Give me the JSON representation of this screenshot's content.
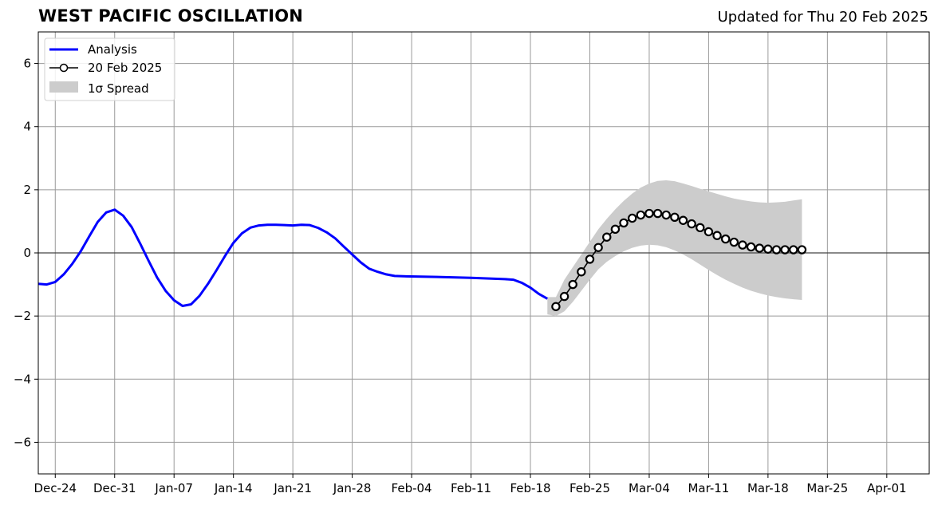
{
  "chart_data": {
    "type": "line",
    "title": "WEST PACIFIC OSCILLATION",
    "subtitle": "Updated for Thu 20 Feb 2025",
    "x_type": "date",
    "xlim": [
      "2024-12-22",
      "2025-04-06"
    ],
    "ylim": [
      -7,
      7
    ],
    "yticks": [
      -6,
      -4,
      -2,
      0,
      2,
      4,
      6
    ],
    "ytick_labels": [
      "−6",
      "−4",
      "−2",
      "0",
      "2",
      "4",
      "6"
    ],
    "xticks": [
      "2024-12-24",
      "2024-12-31",
      "2025-01-07",
      "2025-01-14",
      "2025-01-21",
      "2025-01-28",
      "2025-02-04",
      "2025-02-11",
      "2025-02-18",
      "2025-02-25",
      "2025-03-04",
      "2025-03-11",
      "2025-03-18",
      "2025-03-25",
      "2025-04-01"
    ],
    "xtick_labels": [
      "Dec-24",
      "Dec-31",
      "Jan-07",
      "Jan-14",
      "Jan-21",
      "Jan-28",
      "Feb-04",
      "Feb-11",
      "Feb-18",
      "Feb-25",
      "Mar-04",
      "Mar-11",
      "Mar-18",
      "Mar-25",
      "Apr-01"
    ],
    "grid": true,
    "legend": {
      "position": "top-left",
      "entries": [
        "Analysis",
        "20 Feb 2025",
        "1σ Spread"
      ]
    },
    "colors": {
      "analysis": "#0000ff",
      "forecast": "#000000",
      "spread": "#cccccc"
    },
    "series": [
      {
        "name": "Analysis",
        "style": "line",
        "points": [
          [
            "2024-12-22",
            -0.98
          ],
          [
            "2024-12-23",
            -1.0
          ],
          [
            "2024-12-24",
            -0.92
          ],
          [
            "2024-12-25",
            -0.68
          ],
          [
            "2024-12-26",
            -0.35
          ],
          [
            "2024-12-27",
            0.05
          ],
          [
            "2024-12-28",
            0.52
          ],
          [
            "2024-12-29",
            0.98
          ],
          [
            "2024-12-30",
            1.28
          ],
          [
            "2024-12-31",
            1.37
          ],
          [
            "2025-01-01",
            1.18
          ],
          [
            "2025-01-02",
            0.82
          ],
          [
            "2025-01-03",
            0.3
          ],
          [
            "2025-01-04",
            -0.25
          ],
          [
            "2025-01-05",
            -0.78
          ],
          [
            "2025-01-06",
            -1.2
          ],
          [
            "2025-01-07",
            -1.5
          ],
          [
            "2025-01-08",
            -1.68
          ],
          [
            "2025-01-09",
            -1.63
          ],
          [
            "2025-01-10",
            -1.36
          ],
          [
            "2025-01-11",
            -0.98
          ],
          [
            "2025-01-12",
            -0.55
          ],
          [
            "2025-01-13",
            -0.1
          ],
          [
            "2025-01-14",
            0.32
          ],
          [
            "2025-01-15",
            0.62
          ],
          [
            "2025-01-16",
            0.8
          ],
          [
            "2025-01-17",
            0.87
          ],
          [
            "2025-01-18",
            0.89
          ],
          [
            "2025-01-19",
            0.89
          ],
          [
            "2025-01-20",
            0.88
          ],
          [
            "2025-01-21",
            0.87
          ],
          [
            "2025-01-22",
            0.89
          ],
          [
            "2025-01-23",
            0.88
          ],
          [
            "2025-01-24",
            0.79
          ],
          [
            "2025-01-25",
            0.65
          ],
          [
            "2025-01-26",
            0.46
          ],
          [
            "2025-01-27",
            0.2
          ],
          [
            "2025-01-28",
            -0.05
          ],
          [
            "2025-01-29",
            -0.3
          ],
          [
            "2025-01-30",
            -0.5
          ],
          [
            "2025-01-31",
            -0.6
          ],
          [
            "2025-02-01",
            -0.68
          ],
          [
            "2025-02-02",
            -0.73
          ],
          [
            "2025-02-03",
            -0.74
          ],
          [
            "2025-02-07",
            -0.76
          ],
          [
            "2025-02-11",
            -0.79
          ],
          [
            "2025-02-15",
            -0.83
          ],
          [
            "2025-02-16",
            -0.85
          ],
          [
            "2025-02-17",
            -0.95
          ],
          [
            "2025-02-18",
            -1.1
          ],
          [
            "2025-02-19",
            -1.3
          ],
          [
            "2025-02-20",
            -1.45
          ]
        ]
      },
      {
        "name": "20 Feb 2025",
        "style": "line-circle",
        "points": [
          [
            "2025-02-21",
            -1.7
          ],
          [
            "2025-02-22",
            -1.38
          ],
          [
            "2025-02-23",
            -1.0
          ],
          [
            "2025-02-24",
            -0.6
          ],
          [
            "2025-02-25",
            -0.2
          ],
          [
            "2025-02-26",
            0.17
          ],
          [
            "2025-02-27",
            0.5
          ],
          [
            "2025-02-28",
            0.75
          ],
          [
            "2025-03-01",
            0.95
          ],
          [
            "2025-03-02",
            1.1
          ],
          [
            "2025-03-03",
            1.2
          ],
          [
            "2025-03-04",
            1.25
          ],
          [
            "2025-03-05",
            1.25
          ],
          [
            "2025-03-06",
            1.2
          ],
          [
            "2025-03-07",
            1.13
          ],
          [
            "2025-03-08",
            1.03
          ],
          [
            "2025-03-09",
            0.92
          ],
          [
            "2025-03-10",
            0.8
          ],
          [
            "2025-03-11",
            0.67
          ],
          [
            "2025-03-12",
            0.55
          ],
          [
            "2025-03-13",
            0.44
          ],
          [
            "2025-03-14",
            0.34
          ],
          [
            "2025-03-15",
            0.25
          ],
          [
            "2025-03-16",
            0.19
          ],
          [
            "2025-03-17",
            0.15
          ],
          [
            "2025-03-18",
            0.12
          ],
          [
            "2025-03-19",
            0.1
          ],
          [
            "2025-03-20",
            0.1
          ],
          [
            "2025-03-21",
            0.1
          ],
          [
            "2025-03-22",
            0.1
          ]
        ]
      },
      {
        "name": "1σ Spread",
        "style": "band",
        "points": [
          [
            "2025-02-20",
            -1.95,
            -1.4
          ],
          [
            "2025-02-21",
            -2.0,
            -1.4
          ],
          [
            "2025-02-22",
            -1.85,
            -0.85
          ],
          [
            "2025-02-23",
            -1.55,
            -0.45
          ],
          [
            "2025-02-24",
            -1.2,
            -0.05
          ],
          [
            "2025-02-25",
            -0.85,
            0.35
          ],
          [
            "2025-02-26",
            -0.52,
            0.75
          ],
          [
            "2025-02-27",
            -0.28,
            1.08
          ],
          [
            "2025-02-28",
            -0.1,
            1.38
          ],
          [
            "2025-03-01",
            0.05,
            1.65
          ],
          [
            "2025-03-02",
            0.16,
            1.88
          ],
          [
            "2025-03-03",
            0.23,
            2.07
          ],
          [
            "2025-03-04",
            0.26,
            2.2
          ],
          [
            "2025-03-05",
            0.24,
            2.28
          ],
          [
            "2025-03-06",
            0.18,
            2.3
          ],
          [
            "2025-03-07",
            0.08,
            2.27
          ],
          [
            "2025-03-08",
            -0.05,
            2.2
          ],
          [
            "2025-03-09",
            -0.2,
            2.12
          ],
          [
            "2025-03-10",
            -0.37,
            2.03
          ],
          [
            "2025-03-11",
            -0.54,
            1.95
          ],
          [
            "2025-03-12",
            -0.7,
            1.87
          ],
          [
            "2025-03-13",
            -0.85,
            1.79
          ],
          [
            "2025-03-14",
            -0.98,
            1.72
          ],
          [
            "2025-03-15",
            -1.1,
            1.67
          ],
          [
            "2025-03-16",
            -1.2,
            1.63
          ],
          [
            "2025-03-17",
            -1.28,
            1.6
          ],
          [
            "2025-03-18",
            -1.35,
            1.59
          ],
          [
            "2025-03-19",
            -1.4,
            1.6
          ],
          [
            "2025-03-20",
            -1.44,
            1.62
          ],
          [
            "2025-03-21",
            -1.47,
            1.66
          ],
          [
            "2025-03-22",
            -1.49,
            1.7
          ]
        ]
      }
    ]
  }
}
